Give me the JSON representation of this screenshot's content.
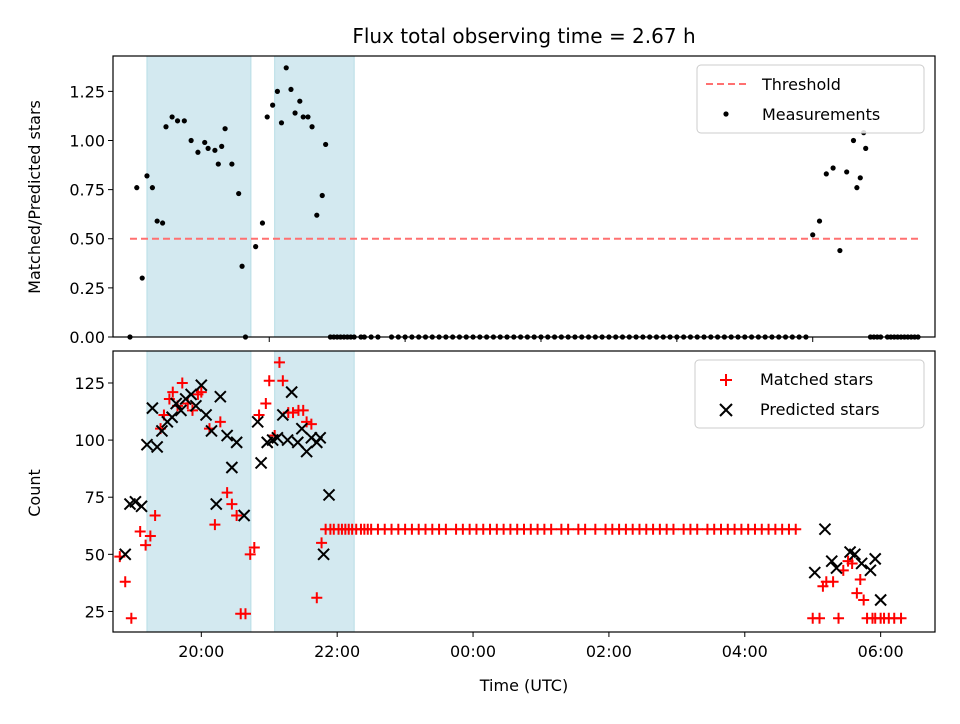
{
  "chart_data": [
    {
      "type": "scatter",
      "title": "Flux total observing time = 2.67 h",
      "xlabel": "",
      "ylabel": "Matched/Predicted stars",
      "xlim": [
        -1.3,
        10.8
      ],
      "ylim": [
        0,
        1.43
      ],
      "xticks": [
        1,
        3,
        5,
        7,
        9,
        11,
        13
      ],
      "yticks": [
        0.0,
        0.25,
        0.5,
        0.75,
        1.0,
        1.25
      ],
      "ytick_labels": [
        "0.00",
        "0.25",
        "0.50",
        "0.75",
        "1.00",
        "1.25"
      ],
      "shaded_regions": [
        [
          -0.8,
          0.73
        ],
        [
          1.08,
          2.25
        ]
      ],
      "threshold": {
        "value": 0.5,
        "x": [
          -1.05,
          10.55
        ]
      },
      "legend": {
        "placement": "top-right",
        "entries": [
          "Threshold",
          "Measurements"
        ]
      },
      "colors": {
        "threshold": "#ff7070",
        "measurements": "#000000",
        "shade": "#d3e9f0"
      },
      "series": [
        {
          "name": "Measurements",
          "x": [
            -1.05,
            -0.95,
            -0.87,
            -0.8,
            -0.72,
            -0.65,
            -0.57,
            -0.52,
            -0.43,
            -0.35,
            -0.25,
            -0.15,
            -0.05,
            0.05,
            0.1,
            0.2,
            0.25,
            0.3,
            0.35,
            0.45,
            0.55,
            0.6,
            0.65,
            0.8,
            0.9,
            0.97,
            1.05,
            1.12,
            1.18,
            1.25,
            1.32,
            1.38,
            1.45,
            1.5,
            1.57,
            1.63,
            1.7,
            1.78,
            1.83,
            1.9,
            1.95,
            2.0,
            2.05,
            2.1,
            2.15,
            2.2,
            2.25,
            2.35,
            2.4,
            2.5,
            2.6,
            2.8,
            2.9,
            3.0,
            3.1,
            3.2,
            3.3,
            3.4,
            3.5,
            3.6,
            3.7,
            3.8,
            3.9,
            4.0,
            4.1,
            4.2,
            4.3,
            4.4,
            4.5,
            4.6,
            4.7,
            4.8,
            4.9,
            5.0,
            5.1,
            5.2,
            5.3,
            5.4,
            5.5,
            5.6,
            5.7,
            5.8,
            5.9,
            6.0,
            6.1,
            6.2,
            6.3,
            6.4,
            6.5,
            6.6,
            6.7,
            6.8,
            6.9,
            7.0,
            7.1,
            7.2,
            7.3,
            7.4,
            7.5,
            7.6,
            7.7,
            7.8,
            7.9,
            8.0,
            8.1,
            8.2,
            8.3,
            8.4,
            8.5,
            8.6,
            8.7,
            8.8,
            8.9,
            9.0,
            9.1,
            9.2,
            9.3,
            9.4,
            9.5,
            9.6,
            9.65,
            9.7,
            9.75,
            9.78,
            9.85,
            9.9,
            9.95,
            10.0,
            10.1,
            10.15,
            10.2,
            10.25,
            10.3,
            10.35,
            10.4,
            10.45,
            10.5,
            10.55
          ],
          "y": [
            0.0,
            0.76,
            0.3,
            0.82,
            0.76,
            0.59,
            0.58,
            1.07,
            1.12,
            1.1,
            1.1,
            1.0,
            0.94,
            0.99,
            0.96,
            0.95,
            0.88,
            0.97,
            1.06,
            0.88,
            0.73,
            0.36,
            0.0,
            0.46,
            0.58,
            1.12,
            1.18,
            1.25,
            1.09,
            1.37,
            1.26,
            1.14,
            1.2,
            1.12,
            1.12,
            1.07,
            0.62,
            0.72,
            0.98,
            0.0,
            0.0,
            0.0,
            0.0,
            0.0,
            0.0,
            0.0,
            0.0,
            0.0,
            0.0,
            0.0,
            0.0,
            0.0,
            0.0,
            0.0,
            0.0,
            0.0,
            0.0,
            0.0,
            0.0,
            0.0,
            0.0,
            0.0,
            0.0,
            0.0,
            0.0,
            0.0,
            0.0,
            0.0,
            0.0,
            0.0,
            0.0,
            0.0,
            0.0,
            0.0,
            0.0,
            0.0,
            0.0,
            0.0,
            0.0,
            0.0,
            0.0,
            0.0,
            0.0,
            0.0,
            0.0,
            0.0,
            0.0,
            0.0,
            0.0,
            0.0,
            0.0,
            0.0,
            0.0,
            0.0,
            0.0,
            0.0,
            0.0,
            0.0,
            0.0,
            0.0,
            0.0,
            0.0,
            0.0,
            0.0,
            0.0,
            0.0,
            0.0,
            0.0,
            0.0,
            0.0,
            0.0,
            0.0,
            0.0,
            0.52,
            0.59,
            0.83,
            0.86,
            0.44,
            0.84,
            1.0,
            0.76,
            0.81,
            1.04,
            0.96,
            0.0,
            0.0,
            0.0,
            0.0,
            0.0,
            0.0,
            0.0,
            0.0,
            0.0,
            0.0,
            0.0,
            0.0,
            0.0,
            0.0
          ]
        }
      ]
    },
    {
      "type": "scatter",
      "title": "",
      "xlabel": "Time (UTC)",
      "ylabel": "Count",
      "xlim": [
        -1.3,
        10.8
      ],
      "ylim": [
        16,
        139
      ],
      "xticks": [
        0,
        2,
        4,
        6,
        8,
        10
      ],
      "xtick_labels": [
        "20:00",
        "22:00",
        "00:00",
        "02:00",
        "04:00",
        "06:00"
      ],
      "yticks": [
        25,
        50,
        75,
        100,
        125
      ],
      "ytick_labels": [
        "25",
        "50",
        "75",
        "100",
        "125"
      ],
      "shaded_regions": [
        [
          -0.8,
          0.73
        ],
        [
          1.08,
          2.25
        ]
      ],
      "legend": {
        "placement": "top-right",
        "entries": [
          "Matched stars",
          "Predicted stars"
        ]
      },
      "colors": {
        "matched": "#ff0000",
        "predicted": "#000000",
        "shade": "#d3e9f0"
      },
      "series": [
        {
          "name": "Matched stars",
          "x": [
            -1.2,
            -1.12,
            -1.03,
            -0.9,
            -0.82,
            -0.75,
            -0.68,
            -0.6,
            -0.55,
            -0.47,
            -0.42,
            -0.35,
            -0.28,
            -0.2,
            -0.13,
            -0.05,
            0.0,
            0.12,
            0.2,
            0.28,
            0.38,
            0.45,
            0.52,
            0.58,
            0.65,
            0.72,
            0.78,
            0.85,
            0.95,
            1.0,
            1.08,
            1.15,
            1.2,
            1.28,
            1.35,
            1.43,
            1.5,
            1.55,
            1.62,
            1.7,
            1.77,
            1.83,
            1.9,
            1.95,
            2.02,
            2.07,
            2.12,
            2.17,
            2.22,
            2.28,
            2.35,
            2.4,
            2.45,
            2.5,
            2.6,
            2.7,
            2.8,
            2.9,
            3.0,
            3.1,
            3.2,
            3.3,
            3.4,
            3.5,
            3.6,
            3.75,
            3.85,
            3.95,
            4.05,
            4.15,
            4.25,
            4.35,
            4.45,
            4.55,
            4.65,
            4.75,
            4.85,
            4.95,
            5.05,
            5.15,
            5.3,
            5.4,
            5.55,
            5.65,
            5.8,
            5.95,
            6.05,
            6.15,
            6.25,
            6.35,
            6.45,
            6.55,
            6.65,
            6.75,
            6.85,
            6.95,
            7.1,
            7.2,
            7.3,
            7.45,
            7.55,
            7.65,
            7.75,
            7.85,
            7.95,
            8.05,
            8.15,
            8.25,
            8.35,
            8.45,
            8.55,
            8.65,
            8.75,
            9.0,
            9.1,
            9.15,
            9.2,
            9.3,
            9.38,
            9.45,
            9.52,
            9.58,
            9.65,
            9.7,
            9.75,
            9.8,
            9.88,
            9.92,
            10.0,
            10.05,
            10.12,
            10.2,
            10.3
          ],
          "y": [
            49,
            38,
            22,
            60,
            54,
            58,
            67,
            105,
            111,
            118,
            121,
            115,
            125,
            116,
            113,
            120,
            121,
            105,
            63,
            108,
            77,
            72,
            67,
            24,
            24,
            50,
            53,
            111,
            116,
            126,
            102,
            134,
            126,
            112,
            112,
            113,
            113,
            108,
            107,
            31,
            55,
            61,
            61,
            61,
            61,
            61,
            61,
            61,
            61,
            61,
            61,
            61,
            61,
            61,
            61,
            61,
            61,
            61,
            61,
            61,
            61,
            61,
            61,
            61,
            61,
            61,
            61,
            61,
            61,
            61,
            61,
            61,
            61,
            61,
            61,
            61,
            61,
            61,
            61,
            61,
            61,
            61,
            61,
            61,
            61,
            61,
            61,
            61,
            61,
            61,
            61,
            61,
            61,
            61,
            61,
            61,
            61,
            61,
            61,
            61,
            61,
            61,
            61,
            61,
            61,
            61,
            61,
            61,
            61,
            61,
            61,
            61,
            61,
            22,
            22,
            36,
            38,
            38,
            22,
            43,
            47,
            46,
            33,
            39,
            30,
            22,
            22,
            22,
            22,
            22,
            22,
            22,
            22
          ]
        },
        {
          "name": "Predicted stars",
          "x": [
            -1.12,
            -1.05,
            -0.97,
            -0.88,
            -0.8,
            -0.72,
            -0.65,
            -0.58,
            -0.5,
            -0.43,
            -0.37,
            -0.3,
            -0.23,
            -0.15,
            -0.08,
            0.0,
            0.07,
            0.15,
            0.22,
            0.28,
            0.38,
            0.45,
            0.52,
            0.63,
            0.83,
            0.88,
            0.97,
            1.05,
            1.12,
            1.2,
            1.27,
            1.33,
            1.42,
            1.48,
            1.55,
            1.62,
            1.7,
            1.75,
            1.8,
            1.88,
            9.03,
            9.18,
            9.28,
            9.35,
            9.55,
            9.62,
            9.72,
            9.85,
            9.92,
            10.0
          ],
          "y": [
            50,
            72,
            73,
            71,
            98,
            114,
            97,
            104,
            108,
            110,
            116,
            113,
            118,
            120,
            115,
            124,
            111,
            104,
            72,
            119,
            102,
            88,
            99,
            67,
            108,
            90,
            99,
            100,
            101,
            111,
            100,
            121,
            99,
            105,
            95,
            101,
            99,
            101,
            50,
            76,
            42,
            61,
            47,
            44,
            51,
            50,
            46,
            43,
            48,
            30
          ]
        }
      ]
    }
  ]
}
